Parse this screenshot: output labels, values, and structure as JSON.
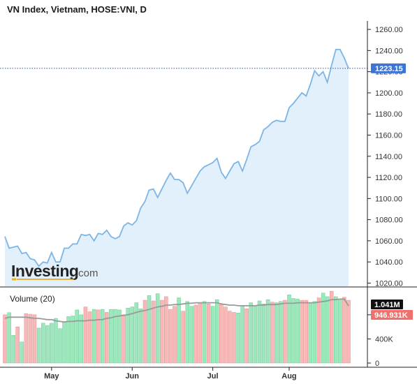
{
  "title": "VN Index, Vietnam, HOSE:VNI, D",
  "logo": {
    "main": "Investing",
    "suffix": ".com"
  },
  "colors": {
    "line": "#7cb5e6",
    "area": "#e1f0fb",
    "price_badge": "#3f74d7",
    "vol_up": "#9ee7bd",
    "vol_up_edge": "#5fcf93",
    "vol_down": "#f7b8b8",
    "vol_down_edge": "#e88e8e",
    "vol_ma": "#9a9a9a",
    "vol_last_badge": "#111111",
    "vol_ma_badge": "#f0706b"
  },
  "chart_data": [
    {
      "type": "area",
      "title": "VN Index, Vietnam, HOSE:VNI, D",
      "xlabel": "",
      "ylabel": "",
      "x_ticks": [
        "May",
        "Jun",
        "Jul",
        "Aug"
      ],
      "x_tick_index": [
        11,
        30,
        49,
        67
      ],
      "y_ticks": [
        "1020.00",
        "1040.00",
        "1060.00",
        "1080.00",
        "1100.00",
        "1120.00",
        "1140.00",
        "1160.00",
        "1180.00",
        "1200.00",
        "1220.00",
        "1240.00",
        "1260.00"
      ],
      "ylim": [
        1017,
        1268
      ],
      "last_value": 1223.15,
      "last_value_label": "1223.15",
      "grid": false,
      "values": [
        1064,
        1053,
        1054,
        1055,
        1048,
        1049,
        1043,
        1042,
        1036,
        1040,
        1039,
        1049,
        1040,
        1040,
        1053,
        1053,
        1057,
        1057,
        1066,
        1065,
        1066,
        1060,
        1067,
        1066,
        1070,
        1064,
        1062,
        1064,
        1074,
        1077,
        1075,
        1079,
        1091,
        1097,
        1108,
        1109,
        1101,
        1109,
        1117,
        1124,
        1118,
        1118,
        1115,
        1105,
        1112,
        1119,
        1126,
        1130,
        1132,
        1134,
        1138,
        1125,
        1119,
        1126,
        1133,
        1135,
        1126,
        1137,
        1149,
        1151,
        1154,
        1165,
        1168,
        1172,
        1174,
        1173,
        1173,
        1186,
        1190,
        1195,
        1200,
        1197,
        1208,
        1221,
        1216,
        1220,
        1210,
        1226,
        1241,
        1241,
        1233,
        1223.15
      ]
    },
    {
      "type": "bar",
      "title": "Volume (20)",
      "y_ticks": [
        "0",
        "400K",
        "800K"
      ],
      "ylim": [
        0,
        1180
      ],
      "last_volume_label": "1.041M",
      "ma_label": "946.931K",
      "grid": false,
      "values": [
        800,
        835,
        460,
        600,
        350,
        820,
        810,
        800,
        580,
        660,
        620,
        660,
        740,
        570,
        680,
        770,
        780,
        880,
        800,
        930,
        850,
        890,
        880,
        890,
        840,
        890,
        890,
        880,
        800,
        910,
        930,
        1000,
        900,
        1040,
        1120,
        1030,
        1150,
        1040,
        1100,
        890,
        940,
        1080,
        860,
        1020,
        940,
        960,
        1000,
        1020,
        980,
        940,
        1050,
        970,
        930,
        860,
        840,
        830,
        950,
        900,
        1000,
        950,
        1030,
        980,
        1050,
        1010,
        1000,
        1020,
        1040,
        1130,
        1070,
        1060,
        1040,
        1040,
        1000,
        1020,
        1080,
        1160,
        1100,
        1190,
        1100,
        1060,
        1090,
        1041
      ],
      "up": [
        false,
        true,
        true,
        false,
        true,
        false,
        false,
        false,
        true,
        true,
        true,
        true,
        true,
        true,
        true,
        true,
        true,
        true,
        true,
        false,
        false,
        true,
        false,
        true,
        false,
        true,
        true,
        true,
        false,
        true,
        true,
        true,
        true,
        false,
        true,
        false,
        true,
        false,
        false,
        false,
        false,
        true,
        false,
        true,
        true,
        false,
        false,
        true,
        false,
        true,
        true,
        false,
        false,
        false,
        false,
        true,
        true,
        false,
        true,
        true,
        true,
        true,
        true,
        false,
        true,
        true,
        false,
        true,
        true,
        true,
        false,
        false,
        true,
        true,
        false,
        true,
        true,
        false,
        true,
        true,
        false,
        false
      ],
      "ma": [
        740,
        760,
        760,
        760,
        760,
        760,
        750,
        740,
        740,
        730,
        720,
        720,
        700,
        690,
        680,
        690,
        690,
        700,
        700,
        700,
        710,
        710,
        720,
        720,
        740,
        750,
        770,
        780,
        790,
        800,
        820,
        840,
        860,
        870,
        890,
        910,
        930,
        940,
        960,
        960,
        970,
        970,
        980,
        990,
        990,
        1000,
        1000,
        1000,
        1000,
        1000,
        1000,
        980,
        970,
        960,
        960,
        950,
        950,
        950,
        950,
        950,
        960,
        960,
        970,
        970,
        970,
        980,
        990,
        990,
        990,
        1000,
        1000,
        1000,
        1000,
        1000,
        1010,
        1020,
        1030,
        1050,
        1050,
        1060,
        1060,
        947
      ]
    }
  ]
}
